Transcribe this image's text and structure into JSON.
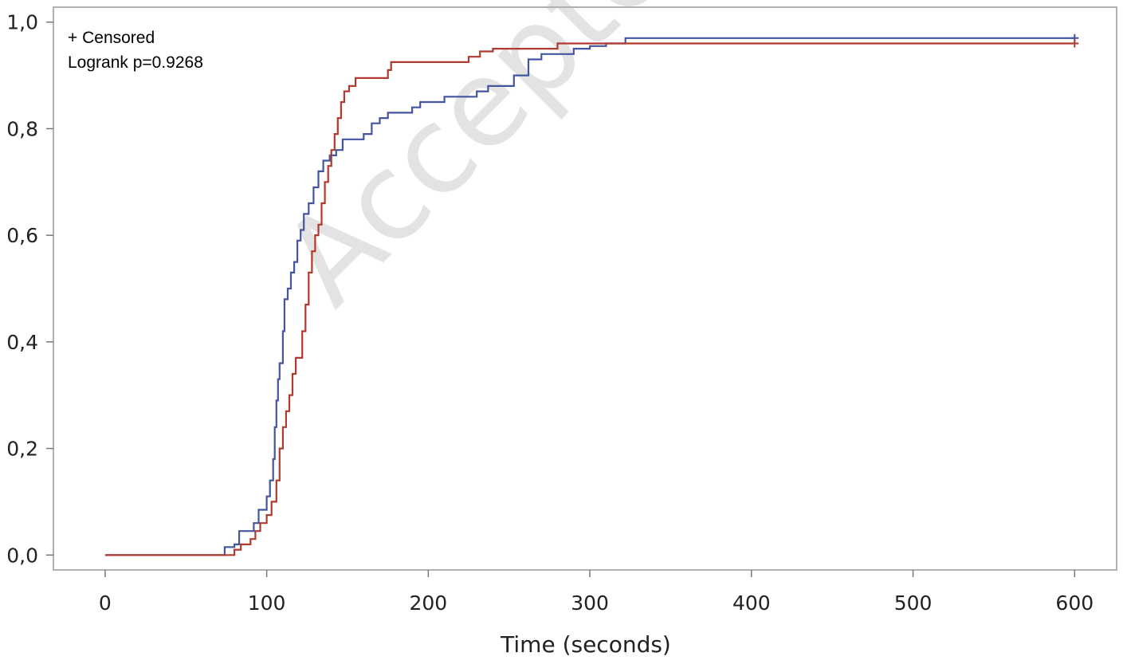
{
  "chart_data": {
    "type": "line",
    "title": "",
    "xlabel": "Time (seconds)",
    "ylabel": "",
    "xlim": [
      -32,
      626
    ],
    "ylim": [
      -0.028,
      1.028
    ],
    "x_ticks": [
      0,
      100,
      200,
      300,
      400,
      500,
      600
    ],
    "x_tick_labels": [
      "0",
      "100",
      "200",
      "300",
      "400",
      "500",
      "600"
    ],
    "y_ticks": [
      0,
      0.2,
      0.4,
      0.6,
      0.8,
      1.0
    ],
    "y_tick_labels": [
      "0,0",
      "0,2",
      "0,4",
      "0,6",
      "0,8",
      "1,0"
    ],
    "grid": false,
    "annotations": [
      "+ Censored",
      "Logrank p=0.9268"
    ],
    "watermark": "Accepted",
    "series": [
      {
        "color": "#4455a0",
        "censored_at": [
          600
        ],
        "points": [
          [
            0,
            0
          ],
          [
            74,
            0.015
          ],
          [
            80,
            0.02
          ],
          [
            83,
            0.045
          ],
          [
            92,
            0.06
          ],
          [
            95,
            0.085
          ],
          [
            100,
            0.11
          ],
          [
            102,
            0.14
          ],
          [
            104,
            0.18
          ],
          [
            105,
            0.24
          ],
          [
            106,
            0.29
          ],
          [
            107,
            0.33
          ],
          [
            108,
            0.36
          ],
          [
            110,
            0.42
          ],
          [
            111,
            0.48
          ],
          [
            113,
            0.5
          ],
          [
            115,
            0.53
          ],
          [
            117,
            0.55
          ],
          [
            119,
            0.59
          ],
          [
            121,
            0.61
          ],
          [
            123,
            0.64
          ],
          [
            126,
            0.66
          ],
          [
            129,
            0.69
          ],
          [
            132,
            0.72
          ],
          [
            135,
            0.74
          ],
          [
            139,
            0.75
          ],
          [
            143,
            0.76
          ],
          [
            147,
            0.78
          ],
          [
            160,
            0.79
          ],
          [
            165,
            0.81
          ],
          [
            170,
            0.82
          ],
          [
            175,
            0.83
          ],
          [
            190,
            0.84
          ],
          [
            195,
            0.85
          ],
          [
            210,
            0.86
          ],
          [
            230,
            0.87
          ],
          [
            237,
            0.88
          ],
          [
            253,
            0.9
          ],
          [
            262,
            0.93
          ],
          [
            270,
            0.94
          ],
          [
            290,
            0.95
          ],
          [
            300,
            0.955
          ],
          [
            310,
            0.96
          ],
          [
            322,
            0.97
          ],
          [
            600,
            0.97
          ]
        ]
      },
      {
        "color": "#b03a2e",
        "censored_at": [
          600
        ],
        "points": [
          [
            0,
            0
          ],
          [
            80,
            0.01
          ],
          [
            84,
            0.02
          ],
          [
            90,
            0.03
          ],
          [
            93,
            0.045
          ],
          [
            96,
            0.06
          ],
          [
            100,
            0.075
          ],
          [
            103,
            0.1
          ],
          [
            106,
            0.14
          ],
          [
            108,
            0.2
          ],
          [
            110,
            0.24
          ],
          [
            112,
            0.27
          ],
          [
            114,
            0.3
          ],
          [
            116,
            0.34
          ],
          [
            118,
            0.37
          ],
          [
            122,
            0.42
          ],
          [
            124,
            0.47
          ],
          [
            126,
            0.53
          ],
          [
            128,
            0.57
          ],
          [
            130,
            0.6
          ],
          [
            132,
            0.62
          ],
          [
            134,
            0.66
          ],
          [
            136,
            0.7
          ],
          [
            138,
            0.73
          ],
          [
            140,
            0.76
          ],
          [
            142,
            0.79
          ],
          [
            144,
            0.82
          ],
          [
            146,
            0.85
          ],
          [
            148,
            0.87
          ],
          [
            151,
            0.88
          ],
          [
            155,
            0.895
          ],
          [
            175,
            0.91
          ],
          [
            177,
            0.925
          ],
          [
            225,
            0.935
          ],
          [
            232,
            0.945
          ],
          [
            240,
            0.95
          ],
          [
            280,
            0.96
          ],
          [
            600,
            0.96
          ]
        ]
      }
    ]
  }
}
